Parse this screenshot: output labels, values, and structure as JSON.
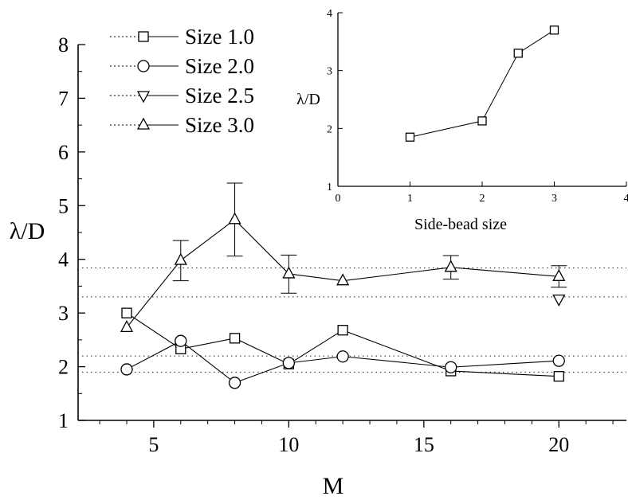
{
  "chart_data": [
    {
      "type": "line",
      "title": "",
      "xlabel": "M",
      "ylabel": "λ/D",
      "xlim": [
        2.2,
        22.5
      ],
      "ylim": [
        1,
        8
      ],
      "x_ticks": [
        5,
        10,
        15,
        20
      ],
      "y_ticks": [
        1,
        2,
        3,
        4,
        5,
        6,
        7,
        8
      ],
      "legend_position": "top-left",
      "series": [
        {
          "name": "Size 1.0",
          "marker": "square",
          "points": [
            [
              4,
              3.0
            ],
            [
              6,
              2.33
            ],
            [
              8,
              2.53
            ],
            [
              10,
              2.05
            ],
            [
              12,
              2.68
            ],
            [
              16,
              1.92
            ],
            [
              20,
              1.82
            ]
          ]
        },
        {
          "name": "Size 2.0",
          "marker": "circle",
          "points": [
            [
              4,
              1.95
            ],
            [
              6,
              2.48
            ],
            [
              8,
              1.7
            ],
            [
              10,
              2.07
            ],
            [
              12,
              2.19
            ],
            [
              16,
              1.99
            ],
            [
              20,
              2.11
            ]
          ]
        },
        {
          "name": "Size 2.5",
          "marker": "triangle-down",
          "points": [
            [
              20,
              3.26
            ]
          ]
        },
        {
          "name": "Size 3.0",
          "marker": "triangle-up",
          "points": [
            [
              4,
              2.73
            ],
            [
              6,
              3.98
            ],
            [
              8,
              4.74
            ],
            [
              10,
              3.73
            ],
            [
              12,
              3.6
            ],
            [
              16,
              3.85
            ],
            [
              20,
              3.68
            ]
          ],
          "error_bars": [
            [
              6,
              3.6,
              4.35
            ],
            [
              8,
              4.06,
              5.42
            ],
            [
              10,
              3.37,
              4.08
            ],
            [
              16,
              3.63,
              4.07
            ],
            [
              20,
              3.48,
              3.88
            ]
          ]
        }
      ],
      "reference_lines": [
        3.84,
        3.3,
        2.2,
        1.9
      ],
      "grid": false
    },
    {
      "type": "line",
      "title": "",
      "xlabel": "Side-bead size",
      "ylabel": "λ/D",
      "xlim": [
        0,
        4
      ],
      "ylim": [
        1,
        4
      ],
      "x_ticks": [
        0,
        1,
        2,
        3,
        4
      ],
      "y_ticks": [
        1,
        2,
        3,
        4
      ],
      "series": [
        {
          "marker": "square",
          "points": [
            [
              1,
              1.85
            ],
            [
              2,
              2.13
            ],
            [
              2.5,
              3.3
            ],
            [
              3,
              3.7
            ]
          ]
        }
      ],
      "grid": false
    }
  ]
}
